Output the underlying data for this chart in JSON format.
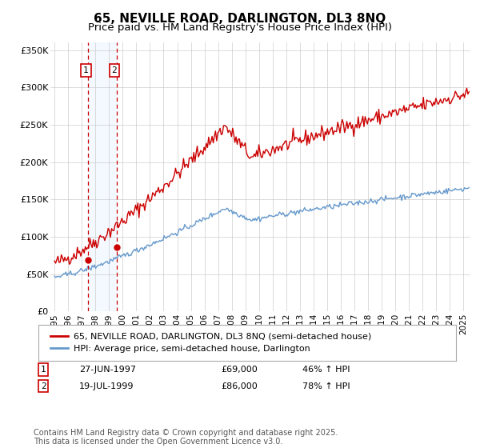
{
  "title_line1": "65, NEVILLE ROAD, DARLINGTON, DL3 8NQ",
  "title_line2": "Price paid vs. HM Land Registry's House Price Index (HPI)",
  "ylim": [
    0,
    360000
  ],
  "yticks": [
    0,
    50000,
    100000,
    150000,
    200000,
    250000,
    300000,
    350000
  ],
  "ytick_labels": [
    "£0",
    "£50K",
    "£100K",
    "£150K",
    "£200K",
    "£250K",
    "£300K",
    "£350K"
  ],
  "xlim_start": 1994.7,
  "xlim_end": 2025.5,
  "xticks": [
    1995,
    1996,
    1997,
    1998,
    1999,
    2000,
    2001,
    2002,
    2003,
    2004,
    2005,
    2006,
    2007,
    2008,
    2009,
    2010,
    2011,
    2012,
    2013,
    2014,
    2015,
    2016,
    2017,
    2018,
    2019,
    2020,
    2021,
    2022,
    2023,
    2024,
    2025
  ],
  "sale1_x": 1997.486,
  "sale1_y": 69000,
  "sale1_label": "27-JUN-1997",
  "sale1_price": "£69,000",
  "sale1_hpi": "46% ↑ HPI",
  "sale2_x": 1999.554,
  "sale2_y": 86000,
  "sale2_label": "19-JUL-1999",
  "sale2_price": "£86,000",
  "sale2_hpi": "78% ↑ HPI",
  "red_line_color": "#cc0000",
  "blue_line_color": "#6699cc",
  "marker_color": "#cc0000",
  "vline_color": "#cc0000",
  "vline_style": "--",
  "shade_color": "#ddeeff",
  "legend_label_red": "65, NEVILLE ROAD, DARLINGTON, DL3 8NQ (semi-detached house)",
  "legend_label_blue": "HPI: Average price, semi-detached house, Darlington",
  "footer_text": "Contains HM Land Registry data © Crown copyright and database right 2025.\nThis data is licensed under the Open Government Licence v3.0.",
  "background_color": "#ffffff",
  "grid_color": "#cccccc",
  "title_fontsize": 11,
  "subtitle_fontsize": 9.5,
  "tick_fontsize": 8,
  "legend_fontsize": 8,
  "footer_fontsize": 7
}
